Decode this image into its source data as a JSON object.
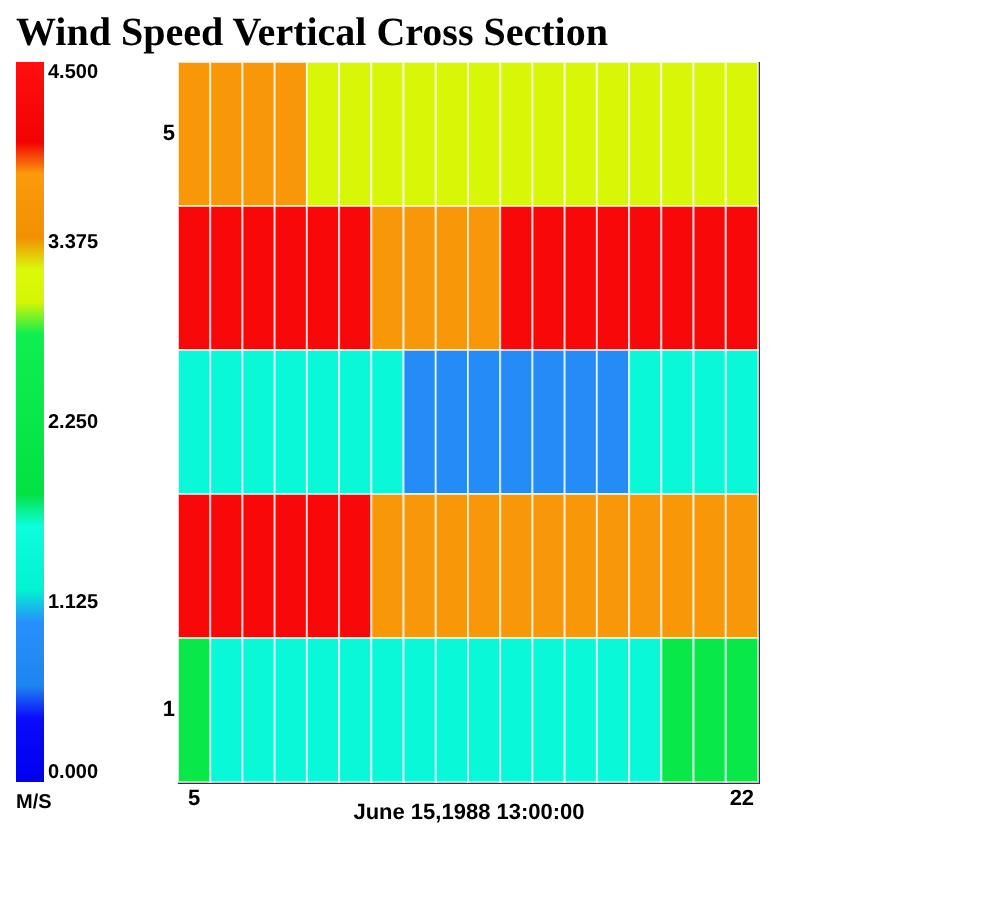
{
  "chart_data": {
    "type": "heatmap",
    "title": "Wind Speed Vertical Cross Section",
    "xlabel": "June 15,1988   13:00:00",
    "clabel": "M/S",
    "categories": [
      "5",
      null,
      null,
      null,
      null,
      null,
      null,
      null,
      null,
      null,
      null,
      null,
      null,
      null,
      null,
      null,
      null,
      "22"
    ],
    "y_categories": [
      "5",
      null,
      null,
      null,
      "1"
    ],
    "cells": [
      [
        3.66,
        3.66,
        3.66,
        3.66,
        3.09,
        3.09,
        3.09,
        3.09,
        3.09,
        3.09,
        3.09,
        3.09,
        3.09,
        3.09,
        3.09,
        3.09,
        3.09,
        3.09
      ],
      [
        4.22,
        4.22,
        4.22,
        4.22,
        4.22,
        4.22,
        3.66,
        3.66,
        3.66,
        3.66,
        4.22,
        4.22,
        4.22,
        4.22,
        4.22,
        4.22,
        4.22,
        4.22
      ],
      [
        1.41,
        1.41,
        1.41,
        1.41,
        1.41,
        1.41,
        1.41,
        0.84,
        0.84,
        0.84,
        0.84,
        0.84,
        0.84,
        0.84,
        1.41,
        1.41,
        1.41,
        1.41
      ],
      [
        4.22,
        4.22,
        4.22,
        4.22,
        4.22,
        4.22,
        3.66,
        3.66,
        3.66,
        3.66,
        3.66,
        3.66,
        3.66,
        3.66,
        3.66,
        3.66,
        3.66,
        3.66
      ],
      [
        2.25,
        1.41,
        1.41,
        1.41,
        1.41,
        1.41,
        1.41,
        1.41,
        1.41,
        1.41,
        1.41,
        1.41,
        1.41,
        1.41,
        1.41,
        2.25,
        2.25,
        2.25
      ]
    ],
    "clim": [
      0,
      4.5
    ],
    "cticks": [
      {
        "value": 0,
        "label": "0.000"
      },
      {
        "value": 1.125,
        "label": "1.125"
      },
      {
        "value": 2.25,
        "label": "2.250"
      },
      {
        "value": 3.375,
        "label": "3.375"
      },
      {
        "value": 4.5,
        "label": "4.500"
      }
    ]
  }
}
